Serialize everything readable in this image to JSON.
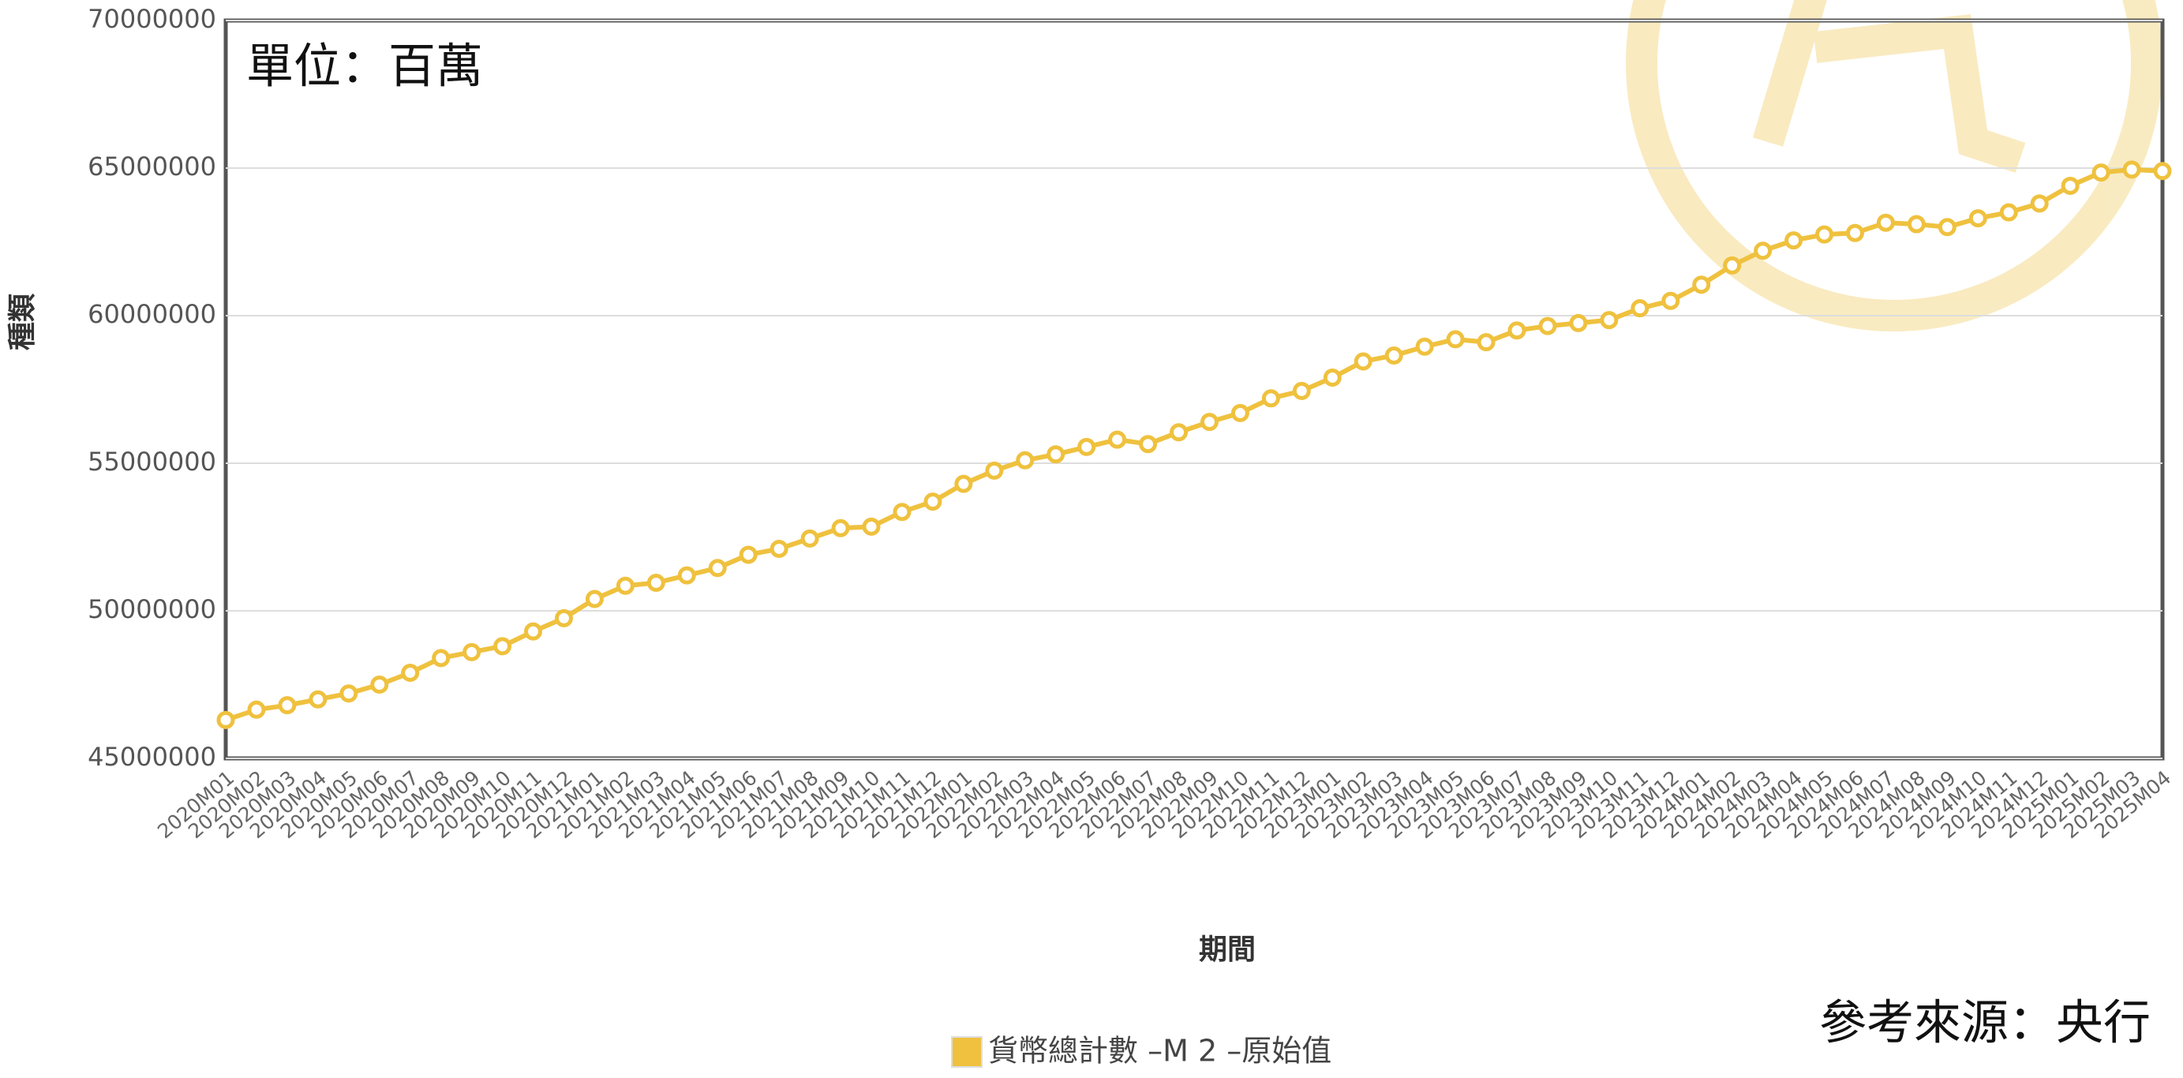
{
  "chart_data": {
    "type": "line",
    "annotation": "單位：百萬",
    "source": "參考來源：央行",
    "x_label": "期間",
    "y_label": "種類",
    "categories": [
      "2020M01",
      "2020M02",
      "2020M03",
      "2020M04",
      "2020M05",
      "2020M06",
      "2020M07",
      "2020M08",
      "2020M09",
      "2020M10",
      "2020M11",
      "2020M12",
      "2021M01",
      "2021M02",
      "2021M03",
      "2021M04",
      "2021M05",
      "2021M06",
      "2021M07",
      "2021M08",
      "2021M09",
      "2021M10",
      "2021M11",
      "2021M12",
      "2022M01",
      "2022M02",
      "2022M03",
      "2022M04",
      "2022M05",
      "2022M06",
      "2022M07",
      "2022M08",
      "2022M09",
      "2022M10",
      "2022M11",
      "2022M12",
      "2023M01",
      "2023M02",
      "2023M03",
      "2023M04",
      "2023M05",
      "2023M06",
      "2023M07",
      "2023M08",
      "2023M09",
      "2023M10",
      "2023M11",
      "2023M12",
      "2024M01",
      "2024M02",
      "2024M03",
      "2024M04",
      "2024M05",
      "2024M06",
      "2024M07",
      "2024M08",
      "2024M09",
      "2024M10",
      "2024M11",
      "2024M12",
      "2025M01",
      "2025M02",
      "2025M03",
      "2025M04"
    ],
    "series": [
      {
        "name": "貨幣總計數 –M 2 –原始值",
        "color": "#efc13e",
        "values": [
          46300000,
          46650000,
          46800000,
          47000000,
          47200000,
          47500000,
          47900000,
          48400000,
          48600000,
          48800000,
          49300000,
          49750000,
          50400000,
          50850000,
          50950000,
          51200000,
          51450000,
          51900000,
          52100000,
          52450000,
          52800000,
          52850000,
          53350000,
          53700000,
          54300000,
          54750000,
          55100000,
          55300000,
          55550000,
          55800000,
          55650000,
          56050000,
          56400000,
          56700000,
          57200000,
          57450000,
          57900000,
          58450000,
          58650000,
          58950000,
          59200000,
          59100000,
          59500000,
          59650000,
          59750000,
          59850000,
          60250000,
          60500000,
          61050000,
          61700000,
          62200000,
          62550000,
          62750000,
          62800000,
          63150000,
          63100000,
          63000000,
          63300000,
          63500000,
          63800000,
          64400000,
          64850000,
          64950000,
          64900000
        ]
      }
    ],
    "ylim": [
      45000000,
      70000000
    ],
    "yticks": [
      45000000,
      50000000,
      55000000,
      60000000,
      65000000,
      70000000
    ],
    "grid": true
  }
}
